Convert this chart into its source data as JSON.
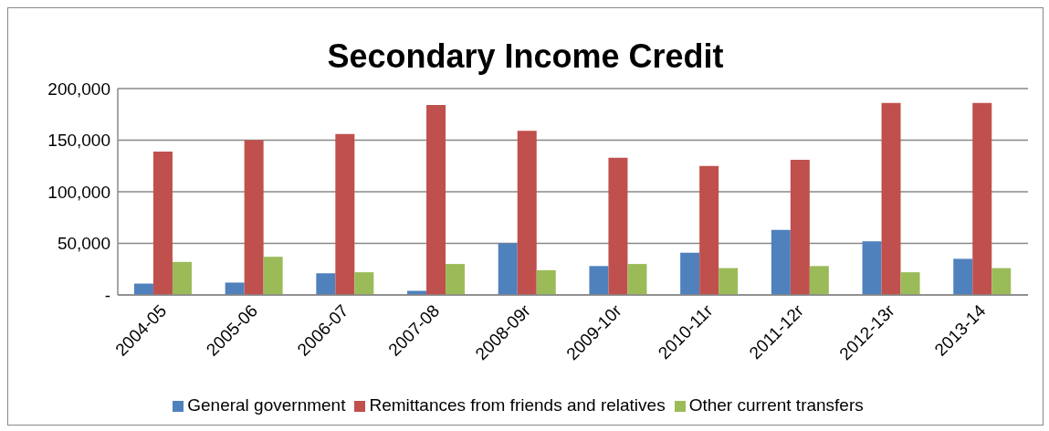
{
  "chart_data": {
    "type": "bar",
    "title": "Secondary Income Credit",
    "categories": [
      "2004-05",
      "2005-06",
      "2006-07",
      "2007-08",
      "2008-09r",
      "2009-10r",
      "2010-11r",
      "2011-12r",
      "2012-13r",
      "2013-14"
    ],
    "series": [
      {
        "name": "General government",
        "color": "#4f81bd",
        "values": [
          11000,
          12000,
          21000,
          4000,
          50000,
          28000,
          41000,
          63000,
          52000,
          35000
        ]
      },
      {
        "name": "Remittances from friends and relatives",
        "color": "#c0504d",
        "values": [
          139000,
          150000,
          156000,
          184000,
          159000,
          133000,
          125000,
          131000,
          186000,
          186000
        ]
      },
      {
        "name": "Other current transfers",
        "color": "#9bbb59",
        "values": [
          32000,
          37000,
          22000,
          30000,
          24000,
          30000,
          26000,
          28000,
          22000,
          26000
        ]
      }
    ],
    "ylim": [
      0,
      200000
    ],
    "yticks": [
      {
        "value": 0,
        "label": "-"
      },
      {
        "value": 50000,
        "label": "50,000"
      },
      {
        "value": 100000,
        "label": "100,000"
      },
      {
        "value": 150000,
        "label": "150,000"
      },
      {
        "value": 200000,
        "label": "200,000"
      }
    ],
    "grid": "y",
    "legend": "bottom"
  }
}
